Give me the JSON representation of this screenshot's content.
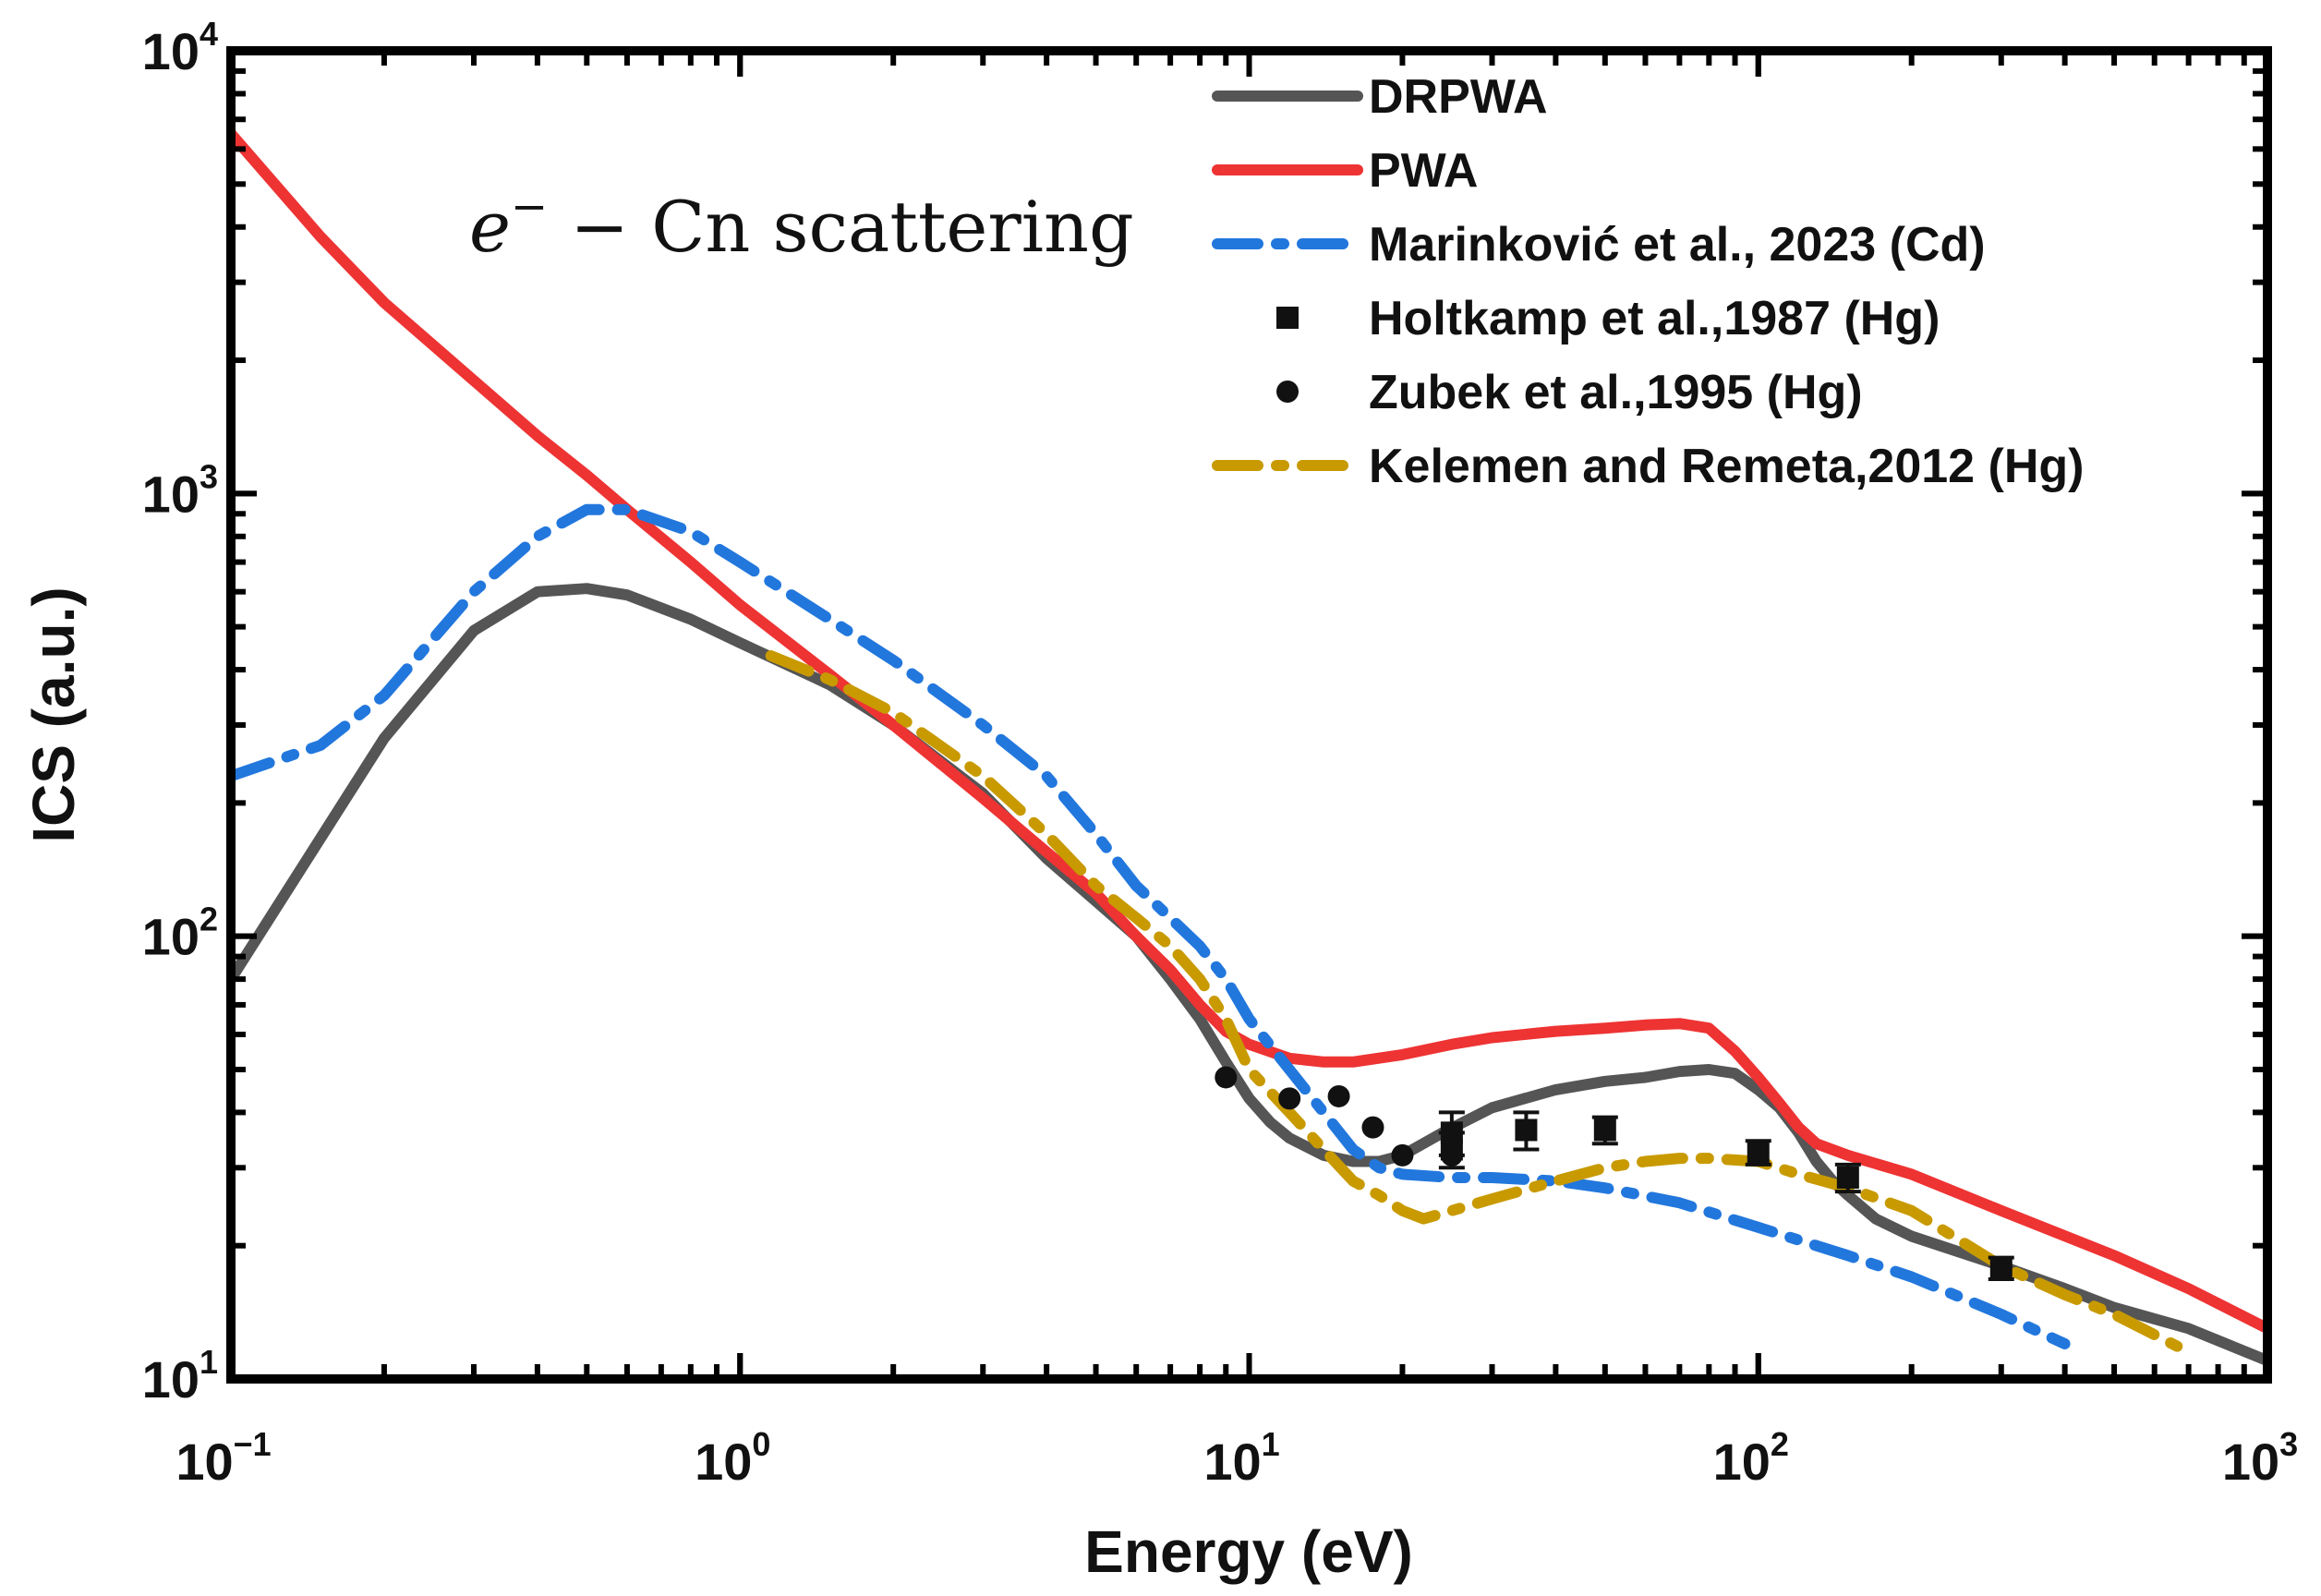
{
  "chart_data": {
    "type": "line",
    "title": "",
    "xlabel": "Energy (eV)",
    "ylabel": "ICS (a.u.)",
    "xscale": "log",
    "yscale": "log",
    "xlim": [
      0.1,
      1000
    ],
    "ylim": [
      10,
      10000
    ],
    "x_ticks": [
      {
        "base": "10",
        "exp": "−1",
        "value": 0.1
      },
      {
        "base": "10",
        "exp": "0",
        "value": 1
      },
      {
        "base": "10",
        "exp": "1",
        "value": 10
      },
      {
        "base": "10",
        "exp": "2",
        "value": 100
      },
      {
        "base": "10",
        "exp": "3",
        "value": 1000
      }
    ],
    "y_ticks": [
      {
        "base": "10",
        "exp": "1",
        "value": 10
      },
      {
        "base": "10",
        "exp": "2",
        "value": 100
      },
      {
        "base": "10",
        "exp": "3",
        "value": 1000
      },
      {
        "base": "10",
        "exp": "4",
        "value": 10000
      }
    ],
    "annotation": {
      "e": "e",
      "sup": "−",
      "rest": " − Cn scattering"
    },
    "legend_position": "top-right",
    "series": [
      {
        "name": "DRPWA",
        "color": "#555555",
        "style": "solid",
        "points": [
          [
            0.1,
            80
          ],
          [
            0.2,
            280
          ],
          [
            0.3,
            490
          ],
          [
            0.4,
            600
          ],
          [
            0.5,
            610
          ],
          [
            0.6,
            590
          ],
          [
            0.8,
            520
          ],
          [
            1.0,
            460
          ],
          [
            1.5,
            370
          ],
          [
            2,
            300
          ],
          [
            3,
            210
          ],
          [
            4,
            150
          ],
          [
            5,
            120
          ],
          [
            6,
            100
          ],
          [
            7,
            80
          ],
          [
            8,
            65
          ],
          [
            9,
            52
          ],
          [
            10,
            43
          ],
          [
            11,
            38
          ],
          [
            12,
            35
          ],
          [
            14,
            32
          ],
          [
            16,
            31
          ],
          [
            18,
            31
          ],
          [
            20,
            32
          ],
          [
            24,
            36
          ],
          [
            30,
            41
          ],
          [
            40,
            45
          ],
          [
            50,
            47
          ],
          [
            60,
            48
          ],
          [
            70,
            49.5
          ],
          [
            80,
            50
          ],
          [
            90,
            49
          ],
          [
            100,
            45
          ],
          [
            110,
            41
          ],
          [
            120,
            36
          ],
          [
            130,
            31
          ],
          [
            140,
            28
          ],
          [
            150,
            26
          ],
          [
            170,
            23
          ],
          [
            200,
            21
          ],
          [
            300,
            18
          ],
          [
            400,
            16
          ],
          [
            500,
            14.5
          ],
          [
            700,
            13
          ],
          [
            1000,
            11
          ]
        ]
      },
      {
        "name": "PWA",
        "color": "#ee3333",
        "style": "solid",
        "points": [
          [
            0.1,
            6500
          ],
          [
            0.15,
            3800
          ],
          [
            0.2,
            2700
          ],
          [
            0.3,
            1800
          ],
          [
            0.4,
            1350
          ],
          [
            0.5,
            1100
          ],
          [
            0.6,
            920
          ],
          [
            0.8,
            700
          ],
          [
            1.0,
            560
          ],
          [
            1.5,
            390
          ],
          [
            2,
            300
          ],
          [
            3,
            205
          ],
          [
            4,
            155
          ],
          [
            5,
            125
          ],
          [
            6,
            100
          ],
          [
            7,
            84
          ],
          [
            8,
            70
          ],
          [
            9,
            61
          ],
          [
            10,
            57
          ],
          [
            12,
            53
          ],
          [
            14,
            52
          ],
          [
            16,
            52
          ],
          [
            20,
            54
          ],
          [
            25,
            57
          ],
          [
            30,
            59
          ],
          [
            40,
            61
          ],
          [
            50,
            62
          ],
          [
            60,
            63
          ],
          [
            70,
            63.5
          ],
          [
            80,
            62
          ],
          [
            90,
            55
          ],
          [
            100,
            48
          ],
          [
            110,
            42
          ],
          [
            120,
            37
          ],
          [
            130,
            34
          ],
          [
            150,
            32
          ],
          [
            200,
            29
          ],
          [
            300,
            24
          ],
          [
            500,
            19
          ],
          [
            700,
            16
          ],
          [
            1000,
            13
          ]
        ]
      },
      {
        "name": "Marinković et al., 2023 (Cd)",
        "color": "#2277dd",
        "style": "dashdot",
        "points": [
          [
            0.1,
            230
          ],
          [
            0.15,
            270
          ],
          [
            0.2,
            350
          ],
          [
            0.3,
            600
          ],
          [
            0.4,
            800
          ],
          [
            0.5,
            920
          ],
          [
            0.6,
            920
          ],
          [
            0.8,
            820
          ],
          [
            1.0,
            700
          ],
          [
            1.5,
            520
          ],
          [
            2,
            420
          ],
          [
            3,
            300
          ],
          [
            4,
            230
          ],
          [
            5,
            170
          ],
          [
            6,
            130
          ],
          [
            7,
            110
          ],
          [
            8,
            95
          ],
          [
            9,
            80
          ],
          [
            10,
            65
          ],
          [
            12,
            50
          ],
          [
            14,
            40
          ],
          [
            16,
            33
          ],
          [
            18,
            30
          ],
          [
            20,
            29
          ],
          [
            25,
            28.5
          ],
          [
            30,
            28.5
          ],
          [
            40,
            28
          ],
          [
            50,
            27
          ],
          [
            70,
            25
          ],
          [
            100,
            22
          ],
          [
            150,
            19
          ],
          [
            200,
            17
          ],
          [
            300,
            14
          ],
          [
            400,
            12
          ]
        ]
      },
      {
        "name": "Holtkamp et al.,1987 (Hg)",
        "color": "#111111",
        "style": "marker-square",
        "points": [
          [
            25,
            33
          ],
          [
            25,
            36
          ],
          [
            35,
            36.5
          ],
          [
            50,
            36.5
          ],
          [
            100,
            32.5
          ],
          [
            150,
            28.5
          ],
          [
            300,
            17.8
          ]
        ],
        "errors": [
          [
            25,
            3
          ],
          [
            25,
            4
          ],
          [
            35,
            3.5
          ],
          [
            50,
            2.5
          ],
          [
            100,
            2
          ],
          [
            150,
            2
          ],
          [
            300,
            1
          ]
        ]
      },
      {
        "name": "Zubek et al.,1995 (Hg)",
        "color": "#111111",
        "style": "marker-circle",
        "points": [
          [
            9,
            48
          ],
          [
            12,
            43
          ],
          [
            15,
            43.5
          ],
          [
            17.5,
            37
          ],
          [
            20,
            32
          ],
          [
            25,
            32
          ]
        ]
      },
      {
        "name": "Kelemen and Remeta,2012 (Hg)",
        "color": "#c89a00",
        "style": "dashdot",
        "points": [
          [
            1.15,
            430
          ],
          [
            1.5,
            380
          ],
          [
            2,
            320
          ],
          [
            3,
            230
          ],
          [
            4,
            170
          ],
          [
            5,
            130
          ],
          [
            6,
            110
          ],
          [
            7,
            95
          ],
          [
            8,
            80
          ],
          [
            9,
            65
          ],
          [
            10,
            50
          ],
          [
            12,
            40
          ],
          [
            14,
            33
          ],
          [
            16,
            28
          ],
          [
            18,
            26
          ],
          [
            20,
            24
          ],
          [
            22,
            23
          ],
          [
            25,
            24
          ],
          [
            30,
            25.5
          ],
          [
            40,
            28
          ],
          [
            50,
            30
          ],
          [
            60,
            31
          ],
          [
            70,
            31.5
          ],
          [
            80,
            31.5
          ],
          [
            100,
            31
          ],
          [
            120,
            29
          ],
          [
            150,
            27
          ],
          [
            200,
            24
          ],
          [
            300,
            18
          ],
          [
            400,
            15.5
          ],
          [
            500,
            14
          ],
          [
            700,
            11.5
          ]
        ]
      }
    ]
  }
}
